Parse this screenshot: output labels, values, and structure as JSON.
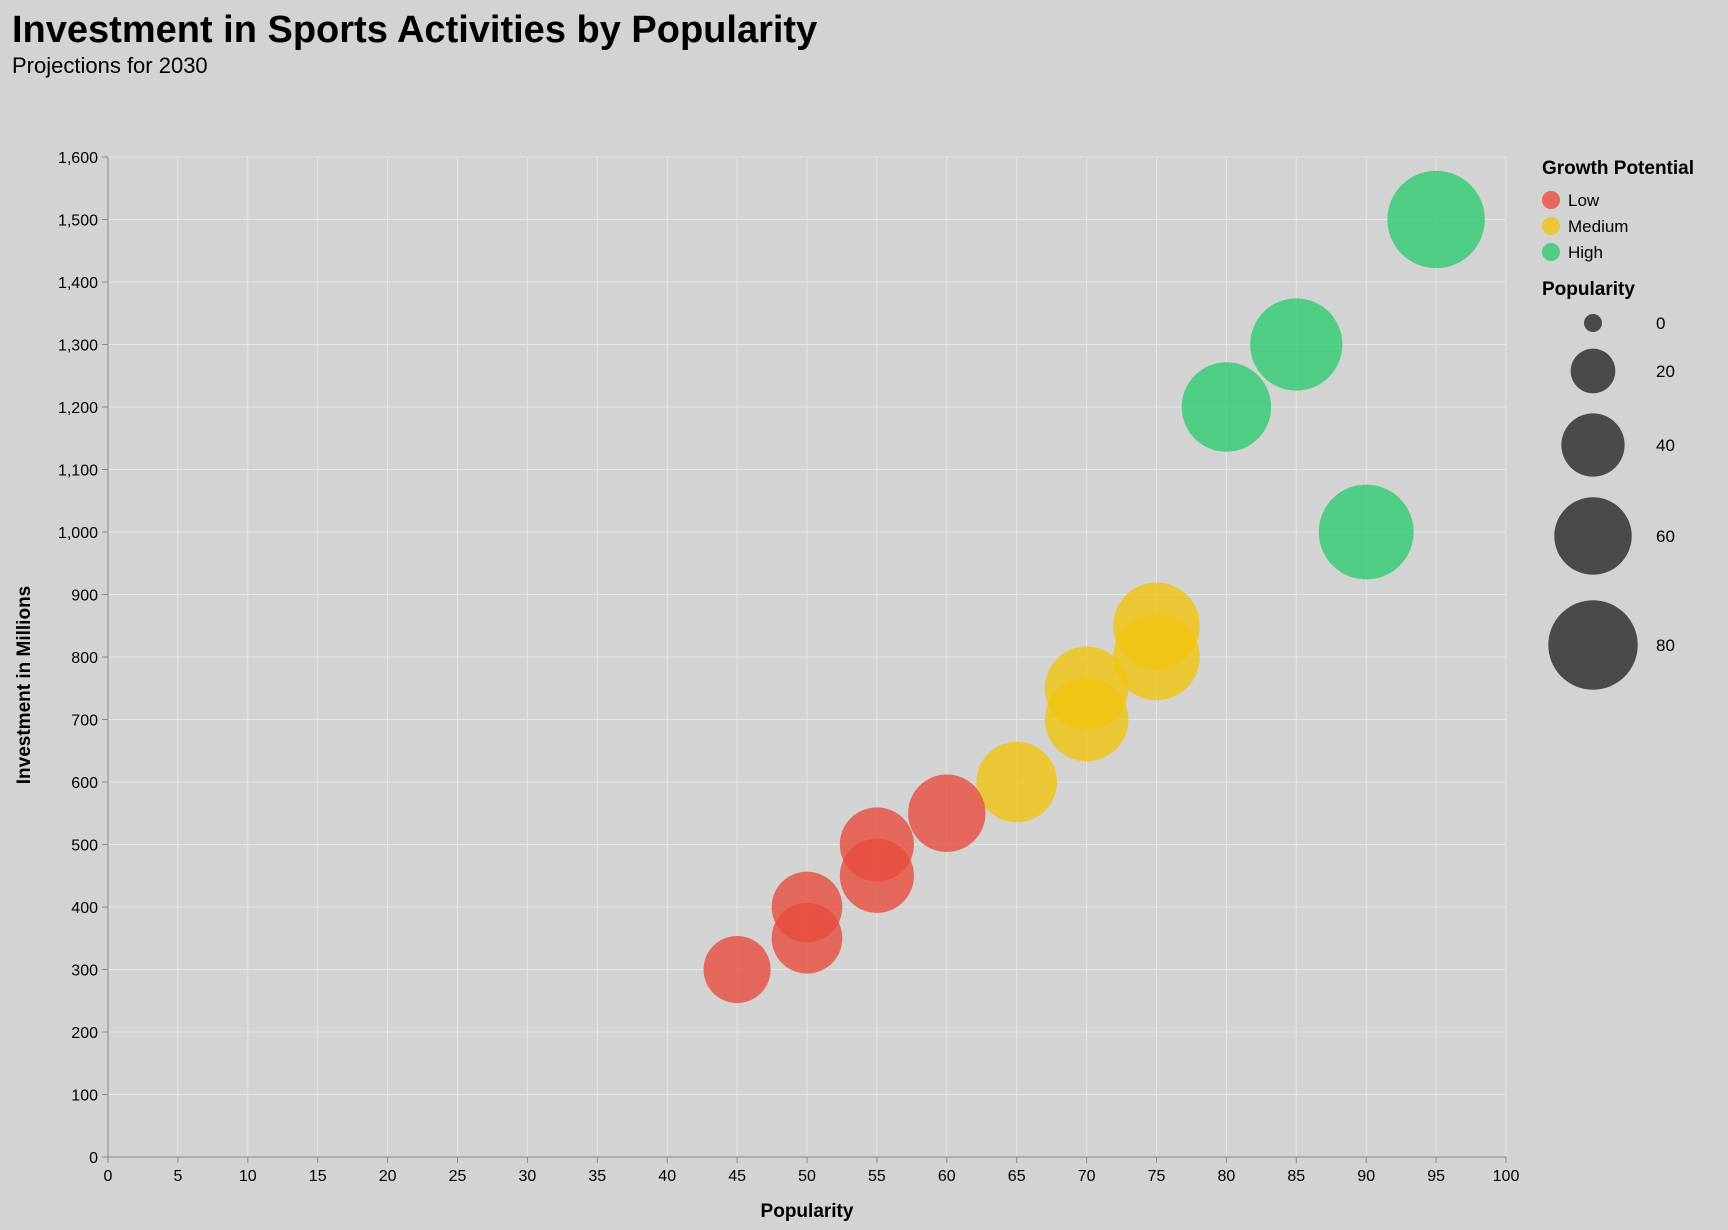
{
  "chart_data": {
    "type": "scatter",
    "title": "Investment in Sports Activities by Popularity",
    "subtitle": "Projections for 2030",
    "xlabel": "Popularity",
    "ylabel": "Investment in Millions",
    "xlim": [
      0,
      100
    ],
    "ylim": [
      0,
      1600
    ],
    "x_ticks": [
      0,
      5,
      10,
      15,
      20,
      25,
      30,
      35,
      40,
      45,
      50,
      55,
      60,
      65,
      70,
      75,
      80,
      85,
      90,
      95,
      100
    ],
    "y_ticks": [
      0,
      100,
      200,
      300,
      400,
      500,
      600,
      700,
      800,
      900,
      1000,
      1100,
      1200,
      1300,
      1400,
      1500,
      1600
    ],
    "x_tick_labels": [
      "0",
      "5",
      "10",
      "15",
      "20",
      "25",
      "30",
      "35",
      "40",
      "45",
      "50",
      "55",
      "60",
      "65",
      "70",
      "75",
      "80",
      "85",
      "90",
      "95",
      "100"
    ],
    "y_tick_labels": [
      "0",
      "100",
      "200",
      "300",
      "400",
      "500",
      "600",
      "700",
      "800",
      "900",
      "1,000",
      "1,100",
      "1,200",
      "1,300",
      "1,400",
      "1,500",
      "1,600"
    ],
    "grid": true,
    "size_encoding": "Popularity",
    "color_encoding": "Growth Potential",
    "legend_position": "right",
    "color_legend": {
      "title": "Growth Potential",
      "entries": [
        {
          "label": "Low",
          "color": "#e74c3c"
        },
        {
          "label": "Medium",
          "color": "#f1c40f"
        },
        {
          "label": "High",
          "color": "#2ecc71"
        }
      ]
    },
    "size_legend": {
      "title": "Popularity",
      "values": [
        0,
        20,
        40,
        60,
        80
      ],
      "labels": [
        "0",
        "20",
        "40",
        "60",
        "80"
      ],
      "color": "#4a4a4a"
    },
    "points": [
      {
        "x": 95,
        "y": 1500,
        "growth": "High"
      },
      {
        "x": 85,
        "y": 1300,
        "growth": "High"
      },
      {
        "x": 80,
        "y": 1200,
        "growth": "High"
      },
      {
        "x": 90,
        "y": 1000,
        "growth": "High"
      },
      {
        "x": 75,
        "y": 850,
        "growth": "Medium"
      },
      {
        "x": 75,
        "y": 800,
        "growth": "Medium"
      },
      {
        "x": 70,
        "y": 750,
        "growth": "Medium"
      },
      {
        "x": 70,
        "y": 700,
        "growth": "Medium"
      },
      {
        "x": 65,
        "y": 600,
        "growth": "Medium"
      },
      {
        "x": 60,
        "y": 550,
        "growth": "Low"
      },
      {
        "x": 55,
        "y": 500,
        "growth": "Low"
      },
      {
        "x": 55,
        "y": 450,
        "growth": "Low"
      },
      {
        "x": 50,
        "y": 400,
        "growth": "Low"
      },
      {
        "x": 50,
        "y": 350,
        "growth": "Low"
      },
      {
        "x": 45,
        "y": 300,
        "growth": "Low"
      }
    ]
  }
}
